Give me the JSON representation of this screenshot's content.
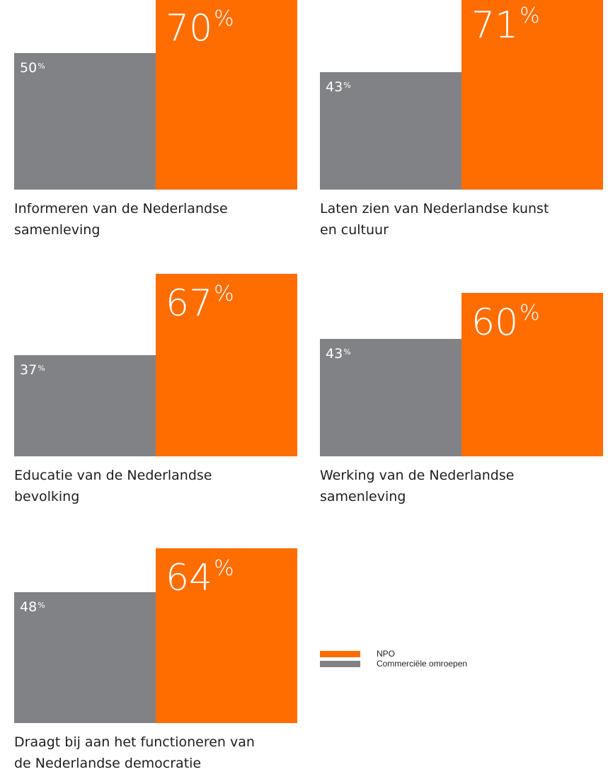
{
  "colors": {
    "npo": "#ff6d00",
    "commercial": "#818285"
  },
  "chart_data": {
    "type": "bar",
    "ylim": [
      0,
      80
    ],
    "unit": "%",
    "legend": [
      {
        "name": "NPO",
        "color": "#ff6d00"
      },
      {
        "name": "Commerciële omroepen",
        "color": "#818285"
      }
    ],
    "series_order": [
      "Commerciële omroepen",
      "NPO"
    ],
    "panels": [
      {
        "caption_lines": [
          "Informeren van de Nederlandse",
          "samenleving"
        ],
        "commercial": 50,
        "npo": 70
      },
      {
        "caption_lines": [
          "Laten zien van Nederlandse kunst",
          "en cultuur"
        ],
        "commercial": 43,
        "npo": 71
      },
      {
        "caption_lines": [
          "Educatie van de Nederlandse",
          "bevolking"
        ],
        "commercial": 37,
        "npo": 67
      },
      {
        "caption_lines": [
          "Werking van de Nederlandse",
          "samenleving"
        ],
        "commercial": 43,
        "npo": 60
      },
      {
        "caption_lines": [
          "Draagt bij aan het functioneren van",
          "de Nederlandse democratie"
        ],
        "commercial": 48,
        "npo": 64
      }
    ]
  }
}
